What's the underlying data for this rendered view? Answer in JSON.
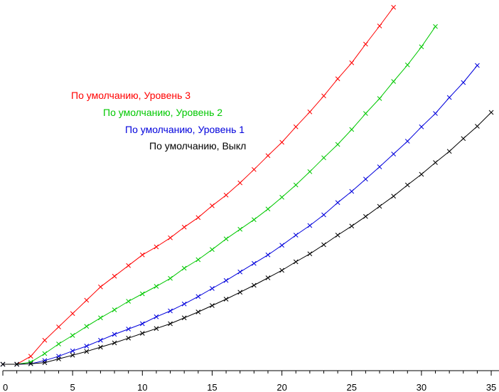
{
  "chart_data": {
    "type": "line",
    "xlim": [
      0,
      35.5
    ],
    "x_ticks": [
      0,
      5,
      10,
      15,
      20,
      25,
      30,
      35
    ],
    "x_tick_labels": [
      "0",
      "5",
      "10",
      "15",
      "20",
      "25",
      "30",
      "35"
    ],
    "grid": false,
    "legend_placement": "upper-left-center",
    "marker": "x",
    "series": [
      {
        "name": "По умолчанию, Уровень 3",
        "color": "#ff0000",
        "x": [
          0,
          1,
          2,
          3,
          4,
          5,
          6,
          7,
          8,
          9,
          10,
          11,
          12,
          13,
          14,
          15,
          16,
          17,
          18,
          19,
          20,
          21,
          22,
          23,
          24,
          25,
          26,
          27,
          28
        ],
        "y": [
          0,
          0,
          1.5,
          4.5,
          7.0,
          9.5,
          12.0,
          14.5,
          16.5,
          18.5,
          20.5,
          22.0,
          23.7,
          25.7,
          27.5,
          29.7,
          31.7,
          34.0,
          36.5,
          39.1,
          41.6,
          44.5,
          47.3,
          50.3,
          53.5,
          56.5,
          60.0,
          63.4,
          66.9
        ]
      },
      {
        "name": "По умолчанию, Уровень 2",
        "color": "#00c800",
        "x": [
          0,
          1,
          2,
          3,
          4,
          5,
          6,
          7,
          8,
          9,
          10,
          11,
          12,
          13,
          14,
          15,
          16,
          17,
          18,
          19,
          20,
          21,
          22,
          23,
          24,
          25,
          26,
          27,
          28,
          29,
          30,
          31
        ],
        "y": [
          0,
          0,
          0.4,
          2.0,
          3.8,
          5.4,
          7.1,
          8.7,
          10.2,
          11.8,
          13.2,
          14.6,
          16.1,
          18.0,
          19.6,
          21.5,
          23.5,
          25.3,
          27.1,
          29.1,
          31.3,
          33.6,
          36.1,
          38.7,
          41.2,
          44.0,
          47.0,
          49.8,
          53.0,
          56.1,
          59.5,
          63.3
        ]
      },
      {
        "name": "По умолчанию, Уровень 1",
        "color": "#0000dc",
        "x": [
          0,
          1,
          2,
          3,
          4,
          5,
          6,
          7,
          8,
          9,
          10,
          11,
          12,
          13,
          14,
          15,
          16,
          17,
          18,
          19,
          20,
          21,
          22,
          23,
          24,
          25,
          26,
          27,
          28,
          29,
          30,
          31,
          32,
          33,
          34
        ],
        "y": [
          0,
          0,
          0.1,
          0.7,
          1.5,
          2.5,
          3.4,
          4.5,
          5.6,
          6.6,
          7.6,
          8.9,
          10.0,
          11.3,
          12.7,
          14.2,
          15.7,
          17.3,
          18.9,
          20.5,
          22.3,
          24.2,
          26.0,
          28.0,
          30.3,
          32.4,
          34.7,
          37.0,
          39.4,
          41.8,
          44.5,
          47.0,
          50.0,
          52.8,
          56.0
        ]
      },
      {
        "name": "По умолчанию, Выкл",
        "color": "#000000",
        "x": [
          0,
          1,
          2,
          3,
          4,
          5,
          6,
          7,
          8,
          9,
          10,
          11,
          12,
          13,
          14,
          15,
          16,
          17,
          18,
          19,
          20,
          21,
          22,
          23,
          24,
          25,
          26,
          27,
          28,
          29,
          30,
          31,
          32,
          33,
          34,
          35
        ],
        "y": [
          0,
          0,
          0.1,
          0.3,
          1.0,
          1.7,
          2.4,
          3.2,
          4.0,
          4.9,
          5.8,
          6.7,
          7.6,
          8.7,
          9.8,
          11.0,
          12.2,
          13.5,
          14.8,
          16.2,
          17.6,
          19.2,
          20.7,
          22.4,
          24.2,
          25.9,
          27.7,
          29.6,
          31.5,
          33.6,
          35.6,
          37.8,
          39.9,
          42.3,
          44.6,
          47.2
        ]
      }
    ],
    "legend": [
      {
        "label": "По умолчанию, Уровень 3",
        "color": "#ff0000"
      },
      {
        "label": "По умолчанию, Уровень 2",
        "color": "#00c800"
      },
      {
        "label": "По умолчанию, Уровень 1",
        "color": "#0000dc"
      },
      {
        "label": "По умолчанию, Выкл",
        "color": "#000000"
      }
    ]
  }
}
